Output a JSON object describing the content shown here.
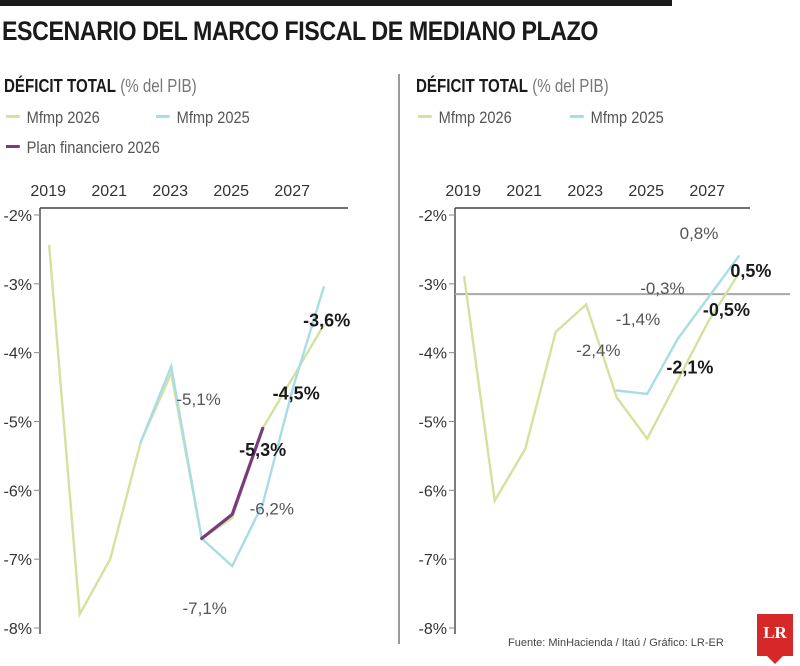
{
  "title": "ESCENARIO DEL MARCO FISCAL DE MEDIANO PLAZO",
  "source": "Fuente: MinHacienda / Itaú / Gráfico: LR-ER",
  "logo": "LR",
  "colors": {
    "mfmp2026": "#d3e29e",
    "mfmp2025": "#a9dde6",
    "plan2026": "#7b3a7e",
    "refline": "#a8a8a8"
  },
  "chart_data": [
    {
      "type": "line",
      "title_bold": "DÉFICIT TOTAL",
      "title_unit": "(% del PIB)",
      "x_ticks": [
        "2019",
        "2021",
        "2023",
        "2025",
        "2027"
      ],
      "y_ticks": [
        "-2%",
        "-3%",
        "-4%",
        "-5%",
        "-6%",
        "-7%",
        "-8%"
      ],
      "xlim": [
        2018.6,
        2028.6
      ],
      "ylim": [
        -8,
        -2
      ],
      "legend": [
        "Mfmp 2026",
        "Mfmp 2025",
        "Plan financiero 2026"
      ],
      "series": [
        {
          "name": "Mfmp 2026",
          "color_key": "mfmp2026",
          "x": [
            2018.9,
            2019.9,
            2020.9,
            2021.9,
            2022.9,
            2023.9,
            2024.9,
            2025.9,
            2026.9,
            2027.9
          ],
          "y": [
            -2.45,
            -7.8,
            -7.0,
            -5.3,
            -4.3,
            -6.7,
            -6.4,
            -5.1,
            -4.35,
            -3.6
          ]
        },
        {
          "name": "Mfmp 2025",
          "color_key": "mfmp2025",
          "x": [
            2021.9,
            2022.9,
            2023.9,
            2024.9,
            2025.9,
            2026.9,
            2027.9
          ],
          "y": [
            -5.3,
            -4.2,
            -6.7,
            -7.1,
            -6.2,
            -4.5,
            -3.05
          ]
        },
        {
          "name": "Plan financiero 2026",
          "color_key": "plan2026",
          "x": [
            2023.9,
            2024.9,
            2025.9
          ],
          "y": [
            -6.7,
            -6.35,
            -5.1
          ]
        }
      ],
      "annotations": [
        {
          "text": "-3,6%",
          "bold": true,
          "x": 2028.0,
          "y": -3.62
        },
        {
          "text": "-4,5%",
          "bold": true,
          "x": 2027.0,
          "y": -4.68
        },
        {
          "text": "-5,1%",
          "bold": false,
          "x": 2023.8,
          "y": -4.76
        },
        {
          "text": "-5,3%",
          "bold": true,
          "x": 2025.9,
          "y": -5.5
        },
        {
          "text": "-6,2%",
          "bold": false,
          "x": 2026.2,
          "y": -6.35
        },
        {
          "text": "-7,1%",
          "bold": false,
          "x": 2024.0,
          "y": -7.8
        }
      ]
    },
    {
      "type": "line",
      "title_bold": "DÉFICIT TOTAL",
      "title_unit": "(% del PIB)",
      "x_ticks": [
        "2019",
        "2021",
        "2023",
        "2025",
        "2027"
      ],
      "y_ticks": [
        "-2%",
        "-3%",
        "-4%",
        "-5%",
        "-6%",
        "-7%",
        "-8%"
      ],
      "xlim": [
        2018.6,
        2028.6
      ],
      "ylim": [
        -8,
        -2
      ],
      "legend": [
        "Mfmp 2026",
        "Mfmp 2025"
      ],
      "reference_line_y": -3.15,
      "series": [
        {
          "name": "Mfmp 2026",
          "color_key": "mfmp2026",
          "x": [
            2018.9,
            2019.9,
            2020.9,
            2021.9,
            2022.9,
            2023.9,
            2024.9,
            2025.9,
            2026.9,
            2027.9
          ],
          "y": [
            -2.9,
            -6.15,
            -5.4,
            -3.7,
            -3.3,
            -4.65,
            -5.25,
            -4.4,
            -3.55,
            -2.85
          ]
        },
        {
          "name": "Mfmp 2025",
          "color_key": "mfmp2025",
          "x": [
            2023.9,
            2024.9,
            2025.9,
            2026.9,
            2027.9
          ],
          "y": [
            -4.55,
            -4.6,
            -3.8,
            -3.2,
            -2.6
          ]
        }
      ],
      "annotations": [
        {
          "text": "0,8%",
          "bold": false,
          "x": 2026.6,
          "y": -2.35
        },
        {
          "text": "0,5%",
          "bold": true,
          "x": 2028.3,
          "y": -2.9
        },
        {
          "text": "-0,3%",
          "bold": false,
          "x": 2025.4,
          "y": -3.15
        },
        {
          "text": "-0,5%",
          "bold": true,
          "x": 2027.5,
          "y": -3.47
        },
        {
          "text": "-1,4%",
          "bold": false,
          "x": 2024.6,
          "y": -3.6
        },
        {
          "text": "-2,4%",
          "bold": false,
          "x": 2023.3,
          "y": -4.05
        },
        {
          "text": "-2,1%",
          "bold": true,
          "x": 2026.3,
          "y": -4.3
        }
      ]
    }
  ]
}
